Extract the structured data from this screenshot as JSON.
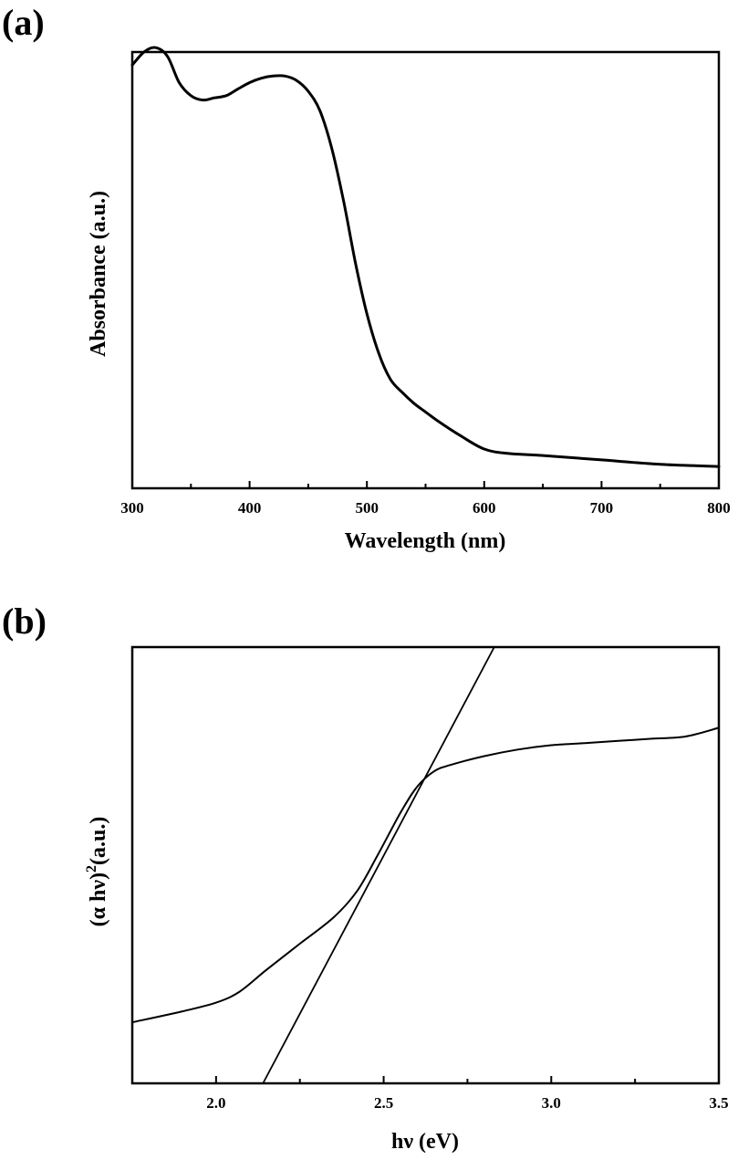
{
  "chart_data": [
    {
      "type": "line",
      "panel_label": "(a)",
      "xlabel": "Wavelength (nm)",
      "ylabel": "Absorbance (a.u.)",
      "xlim": [
        300,
        800
      ],
      "ylim": [
        0,
        1
      ],
      "x_ticks": [
        300,
        400,
        500,
        600,
        700,
        800
      ],
      "x_tick_labels": [
        "300",
        "400",
        "500",
        "600",
        "700",
        "800"
      ],
      "y_ticks_shown": false,
      "series": [
        {
          "x": [
            300,
            310,
            320,
            330,
            340,
            350,
            360,
            370,
            380,
            390,
            400,
            410,
            420,
            430,
            440,
            450,
            460,
            470,
            480,
            490,
            500,
            510,
            520,
            530,
            540,
            550,
            560,
            580,
            600,
            620,
            650,
            700,
            750,
            800
          ],
          "y": [
            0.97,
            1.0,
            1.01,
            0.99,
            0.93,
            0.9,
            0.89,
            0.895,
            0.9,
            0.915,
            0.93,
            0.94,
            0.945,
            0.945,
            0.935,
            0.91,
            0.865,
            0.78,
            0.66,
            0.52,
            0.4,
            0.31,
            0.25,
            0.22,
            0.195,
            0.175,
            0.155,
            0.12,
            0.09,
            0.08,
            0.075,
            0.065,
            0.055,
            0.05
          ]
        }
      ]
    },
    {
      "type": "line",
      "panel_label": "(b)",
      "xlabel": "hν  (eV)",
      "ylabel_main": "(α hν)",
      "ylabel_sup": "2",
      "ylabel_tail": "(a.u.)",
      "xlim": [
        1.75,
        3.5
      ],
      "ylim": [
        0,
        1
      ],
      "x_ticks": [
        2.0,
        2.5,
        3.0,
        3.5
      ],
      "x_tick_labels": [
        "2.0",
        "2.5",
        "3.0",
        "3.5"
      ],
      "y_ticks_shown": false,
      "series": [
        {
          "x": [
            1.75,
            1.9,
            2.0,
            2.07,
            2.15,
            2.25,
            2.35,
            2.42,
            2.48,
            2.55,
            2.6,
            2.65,
            2.7,
            2.8,
            2.9,
            3.0,
            3.1,
            3.2,
            3.3,
            3.4,
            3.5
          ],
          "y": [
            0.14,
            0.165,
            0.185,
            0.21,
            0.26,
            0.32,
            0.38,
            0.44,
            0.52,
            0.62,
            0.68,
            0.715,
            0.73,
            0.75,
            0.765,
            0.775,
            0.78,
            0.785,
            0.79,
            0.795,
            0.815
          ]
        },
        {
          "x": [
            2.14,
            2.83
          ],
          "y": [
            0.0,
            1.0
          ]
        }
      ]
    }
  ]
}
